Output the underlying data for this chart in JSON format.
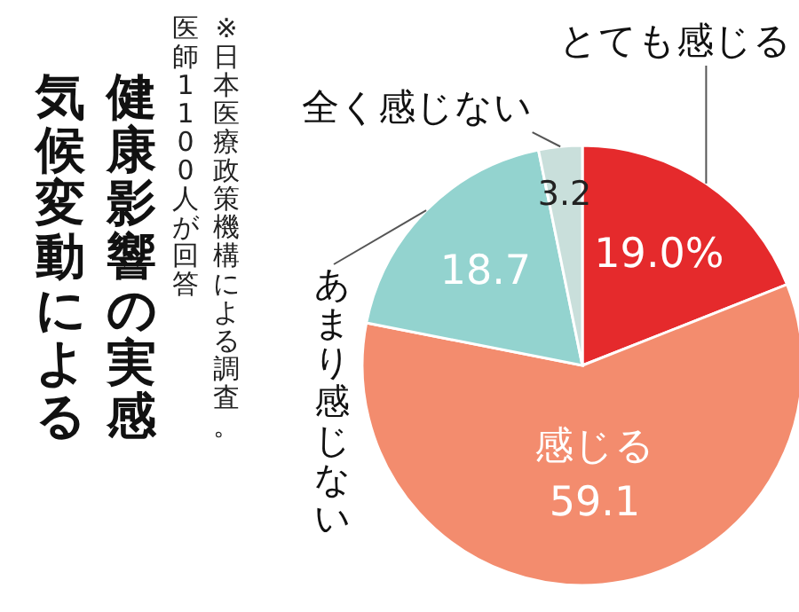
{
  "chart_data": {
    "type": "pie",
    "title": "気候変動による健康影響の実感",
    "annotations": [
      "※日本医療政策機構による調査。医師1100人が回答"
    ],
    "categories": [
      "とても感じる",
      "感じる",
      "あまり感じない",
      "全く感じない"
    ],
    "values": [
      19.0,
      59.1,
      18.7,
      3.2
    ],
    "colors": [
      "#e52a2c",
      "#f38c6e",
      "#93d3cf",
      "#c9dfdb"
    ],
    "value_labels": [
      "19.0%",
      "59.1",
      "18.7",
      "3.2"
    ]
  }
}
